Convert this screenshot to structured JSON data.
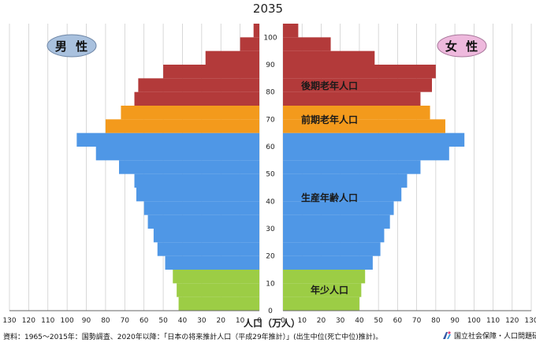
{
  "chart_data": {
    "type": "bar",
    "orientation": "horizontal-pyramid",
    "title": "2035",
    "xlabel": "人口（万人）",
    "x_ticks_left": [
      "130",
      "120",
      "110",
      "100",
      "90",
      "80",
      "70",
      "60",
      "50",
      "40",
      "30",
      "20",
      "10",
      "0"
    ],
    "x_ticks_right": [
      "0",
      "10",
      "20",
      "30",
      "40",
      "50",
      "60",
      "70",
      "80",
      "90",
      "100",
      "110",
      "120",
      "130"
    ],
    "age_ticks": [
      "0",
      "10",
      "20",
      "30",
      "40",
      "50",
      "60",
      "70",
      "80",
      "90",
      "100"
    ],
    "xlim": [
      0,
      130
    ],
    "ylim": [
      0,
      105
    ],
    "grid": true,
    "left_label": "男 性",
    "right_label": "女 性",
    "group_labels": {
      "elderly_late": "後期老年人口",
      "elderly_early": "前期老年人口",
      "working_age": "生産年齢人口",
      "child": "年少人口"
    },
    "colors": {
      "child": "#9ccd45",
      "working": "#4f97e6",
      "elderly_early": "#f39a1c",
      "elderly_late": "#b33a3a",
      "male_badge": "#a9c1de",
      "female_badge": "#eeb9dd"
    },
    "age_groups": [
      {
        "age_from": 0,
        "age_to": 4,
        "male": 42,
        "female": 40
      },
      {
        "age_from": 5,
        "age_to": 9,
        "male": 43,
        "female": 41
      },
      {
        "age_from": 10,
        "age_to": 14,
        "male": 45,
        "female": 43
      },
      {
        "age_from": 15,
        "age_to": 19,
        "male": 49,
        "female": 47
      },
      {
        "age_from": 20,
        "age_to": 24,
        "male": 53,
        "female": 51
      },
      {
        "age_from": 25,
        "age_to": 29,
        "male": 55,
        "female": 53
      },
      {
        "age_from": 30,
        "age_to": 34,
        "male": 58,
        "female": 56
      },
      {
        "age_from": 35,
        "age_to": 39,
        "male": 60,
        "female": 58
      },
      {
        "age_from": 40,
        "age_to": 44,
        "male": 64,
        "female": 62
      },
      {
        "age_from": 45,
        "age_to": 49,
        "male": 65,
        "female": 65
      },
      {
        "age_from": 50,
        "age_to": 54,
        "male": 73,
        "female": 72
      },
      {
        "age_from": 55,
        "age_to": 59,
        "male": 85,
        "female": 87
      },
      {
        "age_from": 60,
        "age_to": 64,
        "male": 95,
        "female": 95
      },
      {
        "age_from": 65,
        "age_to": 69,
        "male": 80,
        "female": 85
      },
      {
        "age_from": 70,
        "age_to": 74,
        "male": 72,
        "female": 77
      },
      {
        "age_from": 75,
        "age_to": 79,
        "male": 65,
        "female": 72
      },
      {
        "age_from": 80,
        "age_to": 84,
        "male": 63,
        "female": 78
      },
      {
        "age_from": 85,
        "age_to": 89,
        "male": 50,
        "female": 80
      },
      {
        "age_from": 90,
        "age_to": 94,
        "male": 28,
        "female": 48
      },
      {
        "age_from": 95,
        "age_to": 99,
        "male": 10,
        "female": 25
      },
      {
        "age_from": 100,
        "age_to": 104,
        "male": 3,
        "female": 8
      }
    ]
  },
  "source_note": "資料：1965〜2015年：国勢調査、2020年以降：「日本の将来推計人口（平成29年推計）」(出生中位(死亡中位)推計)。",
  "institute": "国立社会保障・人口問題研究所"
}
